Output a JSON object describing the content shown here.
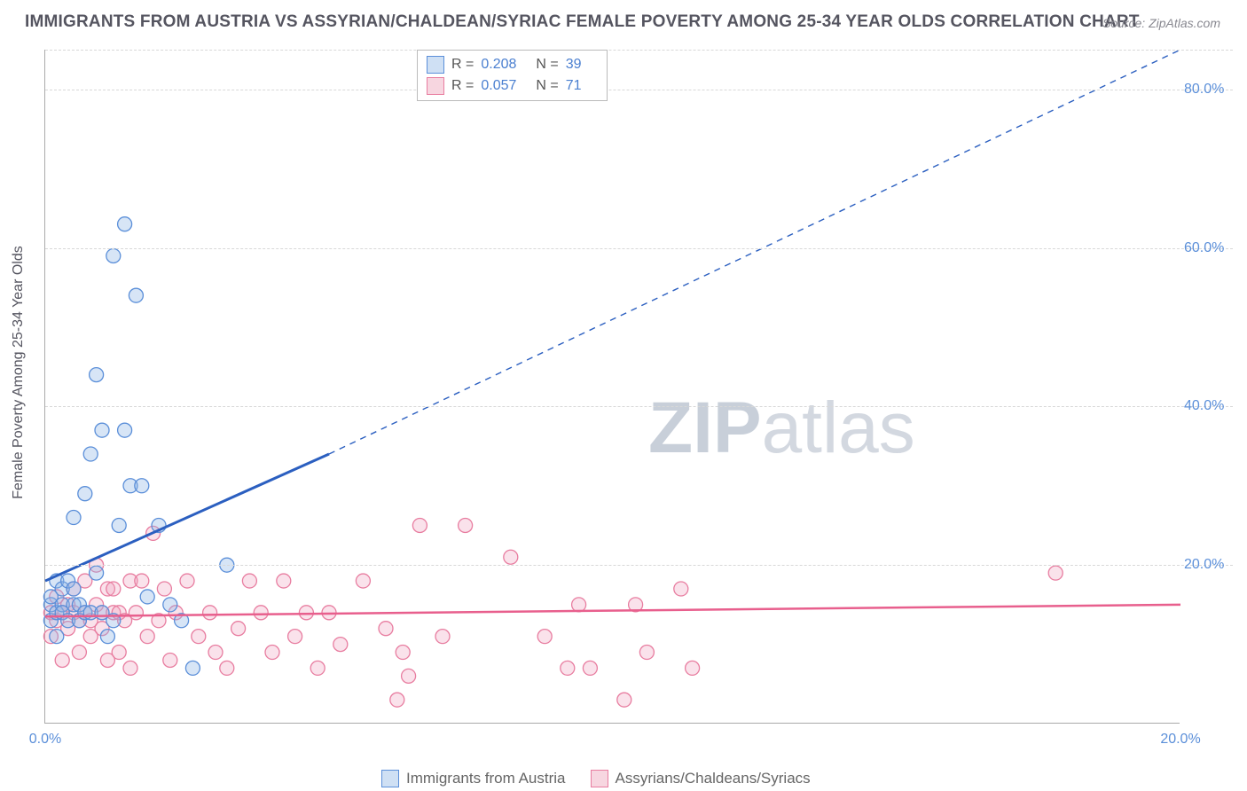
{
  "title": "IMMIGRANTS FROM AUSTRIA VS ASSYRIAN/CHALDEAN/SYRIAC FEMALE POVERTY AMONG 25-34 YEAR OLDS CORRELATION CHART",
  "source": "Source: ZipAtlas.com",
  "ylabel": "Female Poverty Among 25-34 Year Olds",
  "watermark_a": "ZIP",
  "watermark_b": "atlas",
  "chart": {
    "type": "scatter",
    "background_color": "#ffffff",
    "grid_color": "#d8d8d8",
    "axis_color": "#aaaaaa",
    "tick_color": "#5B8FD9",
    "xlim": [
      0,
      20
    ],
    "ylim": [
      0,
      85
    ],
    "xticks": [
      0.0,
      20.0
    ],
    "xtick_labels": [
      "0.0%",
      "20.0%"
    ],
    "yticks": [
      20,
      40,
      60,
      80
    ],
    "ytick_labels": [
      "20.0%",
      "40.0%",
      "60.0%",
      "80.0%"
    ],
    "marker_radius": 8,
    "marker_style": "circle",
    "title_fontsize": 19,
    "label_fontsize": 16
  },
  "series": [
    {
      "key": "austria",
      "label": "Immigrants from Austria",
      "color_fill": "#cfe0f4",
      "color_stroke": "#5B8FD9",
      "trend_color": "#2b5fc0",
      "R": "0.208",
      "N": "39",
      "trend": {
        "x1": 0,
        "y1": 18,
        "x2_solid": 5,
        "y2_solid": 34,
        "x2_dash": 20,
        "y2_dash": 85
      },
      "points": [
        [
          0.1,
          15
        ],
        [
          0.1,
          13
        ],
        [
          0.1,
          16
        ],
        [
          0.2,
          14
        ],
        [
          0.2,
          18
        ],
        [
          0.2,
          11
        ],
        [
          0.3,
          15
        ],
        [
          0.3,
          17
        ],
        [
          0.3,
          14
        ],
        [
          0.4,
          13
        ],
        [
          0.4,
          18
        ],
        [
          0.5,
          15
        ],
        [
          0.5,
          17
        ],
        [
          0.5,
          26
        ],
        [
          0.6,
          15
        ],
        [
          0.6,
          13
        ],
        [
          0.7,
          14
        ],
        [
          0.7,
          29
        ],
        [
          0.8,
          34
        ],
        [
          0.8,
          14
        ],
        [
          0.9,
          19
        ],
        [
          0.9,
          44
        ],
        [
          1.0,
          37
        ],
        [
          1.0,
          14
        ],
        [
          1.1,
          11
        ],
        [
          1.2,
          13
        ],
        [
          1.2,
          59
        ],
        [
          1.3,
          25
        ],
        [
          1.4,
          37
        ],
        [
          1.4,
          63
        ],
        [
          1.5,
          30
        ],
        [
          1.6,
          54
        ],
        [
          1.7,
          30
        ],
        [
          1.8,
          16
        ],
        [
          2.0,
          25
        ],
        [
          2.2,
          15
        ],
        [
          2.6,
          7
        ],
        [
          3.2,
          20
        ],
        [
          2.4,
          13
        ]
      ]
    },
    {
      "key": "assyrian",
      "label": "Assyrians/Chaldeans/Syriacs",
      "color_fill": "#f7d6e0",
      "color_stroke": "#e87da0",
      "trend_color": "#e85f8d",
      "R": "0.057",
      "N": "71",
      "trend": {
        "x1": 0,
        "y1": 13.5,
        "x2": 20,
        "y2": 15
      },
      "points": [
        [
          0.1,
          14
        ],
        [
          0.1,
          11
        ],
        [
          0.2,
          13
        ],
        [
          0.2,
          16
        ],
        [
          0.3,
          14
        ],
        [
          0.3,
          8
        ],
        [
          0.4,
          15
        ],
        [
          0.4,
          12
        ],
        [
          0.5,
          14
        ],
        [
          0.5,
          17
        ],
        [
          0.6,
          13
        ],
        [
          0.6,
          9
        ],
        [
          0.7,
          14
        ],
        [
          0.7,
          18
        ],
        [
          0.8,
          13
        ],
        [
          0.8,
          11
        ],
        [
          0.9,
          15
        ],
        [
          0.9,
          20
        ],
        [
          1.0,
          14
        ],
        [
          1.0,
          12
        ],
        [
          1.1,
          17
        ],
        [
          1.1,
          8
        ],
        [
          1.2,
          14
        ],
        [
          1.2,
          17
        ],
        [
          1.3,
          14
        ],
        [
          1.3,
          9
        ],
        [
          1.4,
          13
        ],
        [
          1.5,
          18
        ],
        [
          1.5,
          7
        ],
        [
          1.6,
          14
        ],
        [
          1.7,
          18
        ],
        [
          1.8,
          11
        ],
        [
          1.9,
          24
        ],
        [
          2.0,
          13
        ],
        [
          2.1,
          17
        ],
        [
          2.2,
          8
        ],
        [
          2.3,
          14
        ],
        [
          2.5,
          18
        ],
        [
          2.7,
          11
        ],
        [
          2.9,
          14
        ],
        [
          3.0,
          9
        ],
        [
          3.2,
          7
        ],
        [
          3.4,
          12
        ],
        [
          3.6,
          18
        ],
        [
          3.8,
          14
        ],
        [
          4.0,
          9
        ],
        [
          4.2,
          18
        ],
        [
          4.4,
          11
        ],
        [
          4.6,
          14
        ],
        [
          4.8,
          7
        ],
        [
          5.0,
          14
        ],
        [
          5.2,
          10
        ],
        [
          5.6,
          18
        ],
        [
          6.0,
          12
        ],
        [
          6.2,
          3
        ],
        [
          6.3,
          9
        ],
        [
          6.4,
          6
        ],
        [
          6.6,
          25
        ],
        [
          7.0,
          11
        ],
        [
          7.4,
          25
        ],
        [
          8.2,
          21
        ],
        [
          8.8,
          11
        ],
        [
          9.2,
          7
        ],
        [
          9.4,
          15
        ],
        [
          9.6,
          7
        ],
        [
          10.2,
          3
        ],
        [
          10.4,
          15
        ],
        [
          10.6,
          9
        ],
        [
          11.2,
          17
        ],
        [
          11.4,
          7
        ],
        [
          17.8,
          19
        ]
      ]
    }
  ],
  "stats_labels": {
    "r": "R =",
    "n": "N ="
  },
  "legend_bottom": [
    {
      "swatch": "blue",
      "text": "Immigrants from Austria"
    },
    {
      "swatch": "pink",
      "text": "Assyrians/Chaldeans/Syriacs"
    }
  ]
}
